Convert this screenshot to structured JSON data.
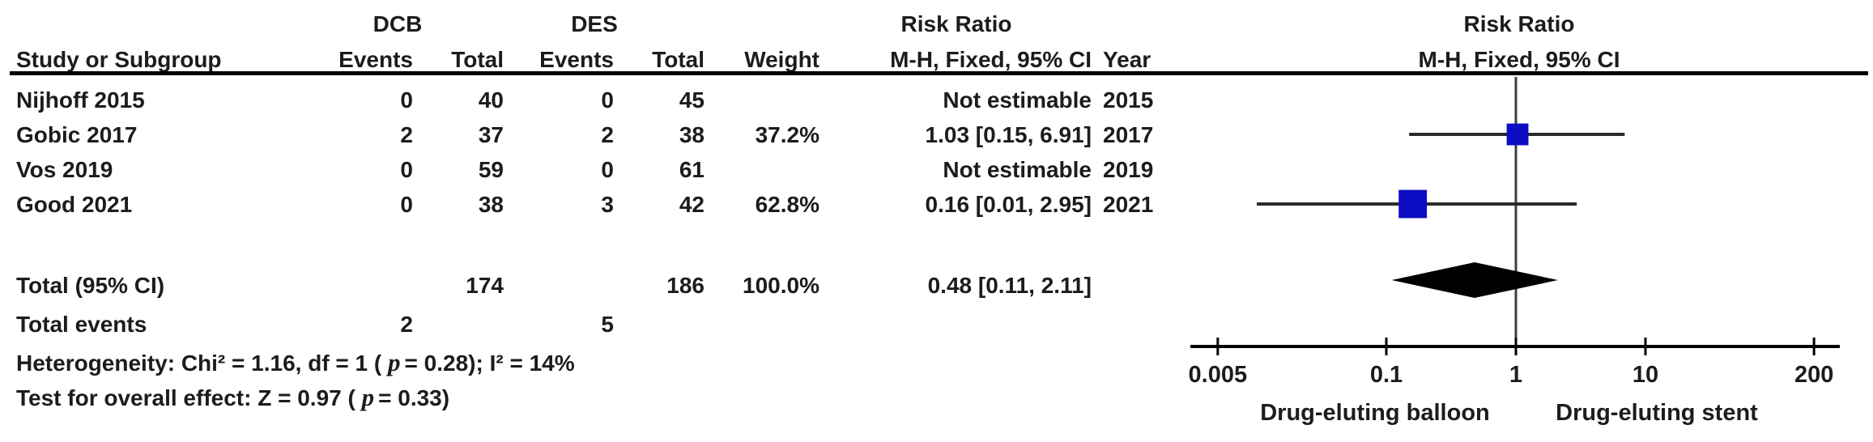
{
  "table": {
    "group1": "DCB",
    "group2": "DES",
    "effect_header": "Risk Ratio",
    "effect_subheader": "M-H, Fixed, 95% CI",
    "col_study": "Study or Subgroup",
    "col_events": "Events",
    "col_total": "Total",
    "col_weight": "Weight",
    "col_ci": "M-H, Fixed, 95% CI",
    "col_year": "Year",
    "rows": [
      {
        "study": "Nijhoff 2015",
        "dcb_events": "0",
        "dcb_total": "40",
        "des_events": "0",
        "des_total": "45",
        "weight": "",
        "rr_ci": "Not estimable",
        "year": "2015"
      },
      {
        "study": "Gobic 2017",
        "dcb_events": "2",
        "dcb_total": "37",
        "des_events": "2",
        "des_total": "38",
        "weight": "37.2%",
        "rr_ci": "1.03 [0.15, 6.91]",
        "year": "2017"
      },
      {
        "study": "Vos 2019",
        "dcb_events": "0",
        "dcb_total": "59",
        "des_events": "0",
        "des_total": "61",
        "weight": "",
        "rr_ci": "Not estimable",
        "year": "2019"
      },
      {
        "study": "Good 2021",
        "dcb_events": "0",
        "dcb_total": "38",
        "des_events": "3",
        "des_total": "42",
        "weight": "62.8%",
        "rr_ci": "0.16 [0.01, 2.95]",
        "year": "2021"
      }
    ],
    "total_row": {
      "label": "Total (95% CI)",
      "dcb_total": "174",
      "des_total": "186",
      "weight": "100.0%",
      "rr_ci": "0.48 [0.11, 2.11]"
    },
    "total_events_row": {
      "label": "Total events",
      "dcb_events": "2",
      "des_events": "5"
    },
    "heterogeneity": {
      "pre": "Heterogeneity: Chi² = 1.16, df = 1 ( ",
      "p": "p",
      "post": "= 0.28); I² = 14%"
    },
    "overall_effect": {
      "pre": "Test for overall effect: Z = 0.97 ( ",
      "p": "p",
      "post": "= 0.33)"
    }
  },
  "plot": {
    "header": "Risk Ratio",
    "subheader": "M-H, Fixed, 95% CI",
    "xlabel_left": "Drug-eluting balloon",
    "xlabel_right": "Drug-eluting stent"
  },
  "chart_data": {
    "type": "forest",
    "effect_measure": "Risk Ratio, M-H, Fixed, 95% CI",
    "x_scale": "log",
    "x_ticks": [
      {
        "v": 0.005,
        "label": "0.005"
      },
      {
        "v": 0.1,
        "label": "0.1"
      },
      {
        "v": 1,
        "label": "1"
      },
      {
        "v": 10,
        "label": "10"
      },
      {
        "v": 200,
        "label": "200"
      }
    ],
    "favours_left": "Drug-eluting balloon",
    "favours_right": "Drug-eluting stent",
    "studies": [
      {
        "name": "Nijhoff 2015",
        "year": 2015,
        "dcb_events": 0,
        "dcb_total": 40,
        "des_events": 0,
        "des_total": 45,
        "weight_pct": null,
        "rr": null,
        "ci_low": null,
        "ci_high": null,
        "note": "Not estimable"
      },
      {
        "name": "Gobic 2017",
        "year": 2017,
        "dcb_events": 2,
        "dcb_total": 37,
        "des_events": 2,
        "des_total": 38,
        "weight_pct": 37.2,
        "rr": 1.03,
        "ci_low": 0.15,
        "ci_high": 6.91,
        "note": ""
      },
      {
        "name": "Vos 2019",
        "year": 2019,
        "dcb_events": 0,
        "dcb_total": 59,
        "des_events": 0,
        "des_total": 61,
        "weight_pct": null,
        "rr": null,
        "ci_low": null,
        "ci_high": null,
        "note": "Not estimable"
      },
      {
        "name": "Good 2021",
        "year": 2021,
        "dcb_events": 0,
        "dcb_total": 38,
        "des_events": 3,
        "des_total": 42,
        "weight_pct": 62.8,
        "rr": 0.16,
        "ci_low": 0.01,
        "ci_high": 2.95,
        "note": ""
      }
    ],
    "total": {
      "label": "Total (95% CI)",
      "dcb_total": 174,
      "des_total": 186,
      "total_events_dcb": 2,
      "total_events_des": 5,
      "weight_pct": 100.0,
      "rr": 0.48,
      "ci_low": 0.11,
      "ci_high": 2.11
    },
    "heterogeneity": {
      "chi2": 1.16,
      "df": 1,
      "p": 0.28,
      "i2_pct": 14
    },
    "overall_effect": {
      "z": 0.97,
      "p": 0.33
    },
    "colors": {
      "marker": "#0d0dc4",
      "ci_line": "#2b2b2b",
      "diamond": "#000000",
      "axis": "#000000",
      "center_line": "#3d3d3d"
    }
  }
}
